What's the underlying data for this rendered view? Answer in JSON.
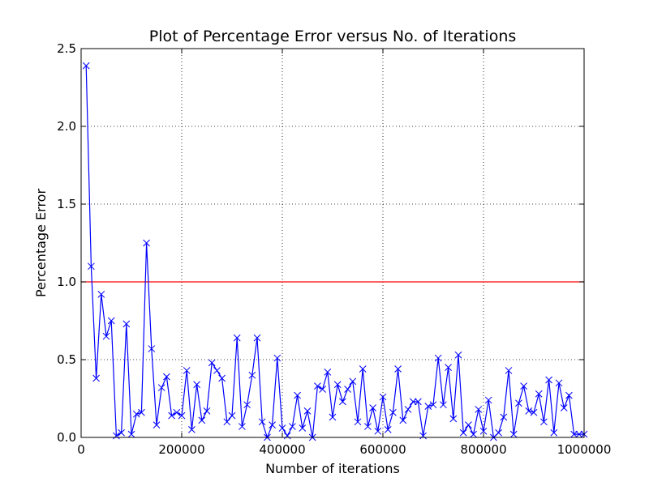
{
  "chart_data": {
    "type": "line",
    "title": "Plot of Percentage Error versus No. of Iterations",
    "xlabel": "Number of iterations",
    "ylabel": "Percentage Error",
    "xlim": [
      0,
      1000000
    ],
    "ylim": [
      0,
      2.5
    ],
    "x_ticks": [
      0,
      200000,
      400000,
      600000,
      800000,
      1000000
    ],
    "x_tick_labels": [
      "0",
      "200000",
      "400000",
      "600000",
      "800000",
      "1000000"
    ],
    "y_ticks": [
      0,
      0.5,
      1,
      1.5,
      2,
      2.5
    ],
    "y_tick_labels": [
      "0.0",
      "0.5",
      "1.0",
      "1.5",
      "2.0",
      "2.5"
    ],
    "grid": true,
    "series_color": "#0000ff",
    "threshold_color": "#ff0000",
    "marker": "x",
    "threshold": 1.0,
    "x": [
      10000,
      20000,
      30000,
      40000,
      50000,
      60000,
      70000,
      80000,
      90000,
      100000,
      110000,
      120000,
      130000,
      140000,
      150000,
      160000,
      170000,
      180000,
      190000,
      200000,
      210000,
      220000,
      230000,
      240000,
      250000,
      260000,
      270000,
      280000,
      290000,
      300000,
      310000,
      320000,
      330000,
      340000,
      350000,
      360000,
      370000,
      380000,
      390000,
      400000,
      410000,
      420000,
      430000,
      440000,
      450000,
      460000,
      470000,
      480000,
      490000,
      500000,
      510000,
      520000,
      530000,
      540000,
      550000,
      560000,
      570000,
      580000,
      590000,
      600000,
      610000,
      620000,
      630000,
      640000,
      650000,
      660000,
      670000,
      680000,
      690000,
      700000,
      710000,
      720000,
      730000,
      740000,
      750000,
      760000,
      770000,
      780000,
      790000,
      800000,
      810000,
      820000,
      830000,
      840000,
      850000,
      860000,
      870000,
      880000,
      890000,
      900000,
      910000,
      920000,
      930000,
      940000,
      950000,
      960000,
      970000,
      980000,
      990000,
      1000000
    ],
    "y": [
      2.39,
      1.1,
      0.38,
      0.92,
      0.65,
      0.75,
      0.01,
      0.03,
      0.73,
      0.02,
      0.15,
      0.16,
      1.25,
      0.57,
      0.08,
      0.32,
      0.39,
      0.14,
      0.16,
      0.14,
      0.43,
      0.05,
      0.34,
      0.11,
      0.17,
      0.48,
      0.43,
      0.38,
      0.1,
      0.14,
      0.64,
      0.07,
      0.21,
      0.4,
      0.64,
      0.1,
      0.0,
      0.08,
      0.51,
      0.06,
      0.01,
      0.07,
      0.27,
      0.06,
      0.17,
      0.0,
      0.33,
      0.31,
      0.42,
      0.13,
      0.34,
      0.23,
      0.31,
      0.36,
      0.1,
      0.44,
      0.07,
      0.19,
      0.04,
      0.26,
      0.05,
      0.16,
      0.44,
      0.11,
      0.18,
      0.23,
      0.23,
      0.01,
      0.2,
      0.21,
      0.51,
      0.21,
      0.45,
      0.12,
      0.53,
      0.03,
      0.08,
      0.02,
      0.18,
      0.04,
      0.24,
      0.0,
      0.03,
      0.13,
      0.43,
      0.02,
      0.22,
      0.33,
      0.17,
      0.16,
      0.28,
      0.1,
      0.37,
      0.03,
      0.35,
      0.19,
      0.27,
      0.02,
      0.02,
      0.02
    ]
  }
}
